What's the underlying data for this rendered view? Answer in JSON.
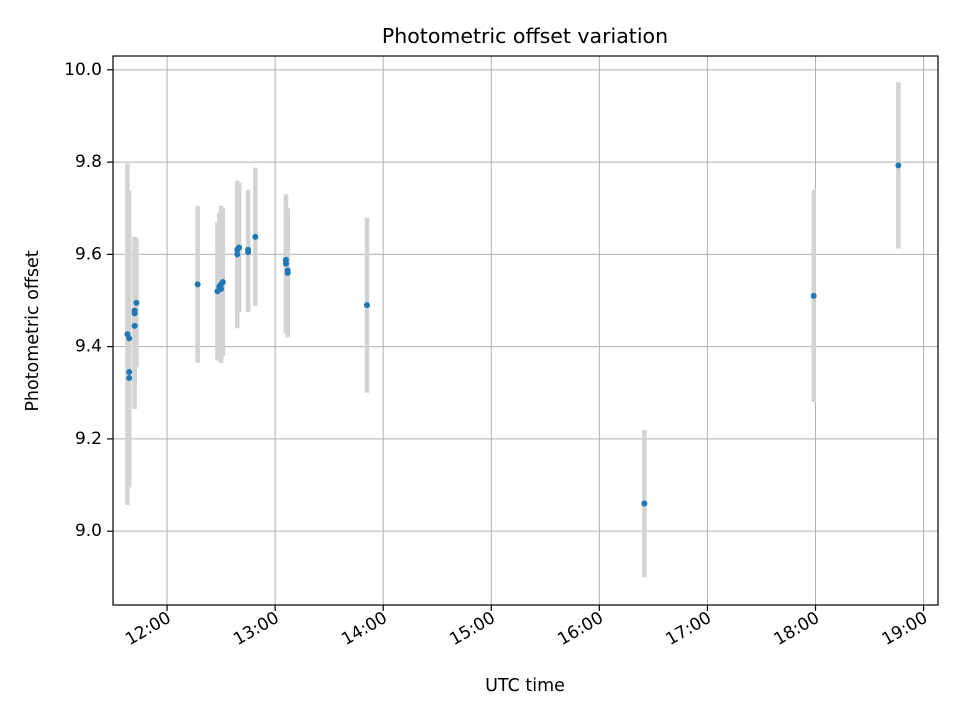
{
  "chart_data": {
    "type": "scatter",
    "title": "Photometric offset variation",
    "xlabel": "UTC time",
    "ylabel": "Photometric offset",
    "x_axis_type": "time",
    "xlim": [
      "11:30",
      "19:08"
    ],
    "ylim": [
      8.84,
      10.03
    ],
    "x_ticks": [
      "12:00",
      "13:00",
      "14:00",
      "15:00",
      "16:00",
      "17:00",
      "18:00",
      "19:00"
    ],
    "y_ticks": [
      9.0,
      9.2,
      9.4,
      9.6,
      9.8,
      10.0
    ],
    "y_tick_labels": [
      "9.0",
      "9.2",
      "9.4",
      "9.6",
      "9.8",
      "10.0"
    ],
    "grid": true,
    "colors": {
      "points": "#1f77b4",
      "error_bars": "#d3d3d3",
      "grid": "#b0b0b0"
    },
    "points": [
      {
        "x": "11:38",
        "y": 9.427,
        "yerr": 0.37
      },
      {
        "x": "11:39",
        "y": 9.418,
        "yerr": 0.32
      },
      {
        "x": "11:39",
        "y": 9.345,
        "yerr": 0.25
      },
      {
        "x": "11:39",
        "y": 9.332,
        "yerr": 0.22
      },
      {
        "x": "11:42",
        "y": 9.445,
        "yerr": 0.18
      },
      {
        "x": "11:42",
        "y": 9.472,
        "yerr": 0.15
      },
      {
        "x": "11:42",
        "y": 9.478,
        "yerr": 0.16
      },
      {
        "x": "11:43",
        "y": 9.495,
        "yerr": 0.14
      },
      {
        "x": "12:17",
        "y": 9.535,
        "yerr": 0.17
      },
      {
        "x": "12:28",
        "y": 9.52,
        "yerr": 0.15
      },
      {
        "x": "12:29",
        "y": 9.53,
        "yerr": 0.16
      },
      {
        "x": "12:30",
        "y": 9.535,
        "yerr": 0.17
      },
      {
        "x": "12:30",
        "y": 9.525,
        "yerr": 0.16
      },
      {
        "x": "12:31",
        "y": 9.54,
        "yerr": 0.16
      },
      {
        "x": "12:39",
        "y": 9.6,
        "yerr": 0.16
      },
      {
        "x": "12:39",
        "y": 9.61,
        "yerr": 0.14
      },
      {
        "x": "12:40",
        "y": 9.615,
        "yerr": 0.14
      },
      {
        "x": "12:45",
        "y": 9.61,
        "yerr": 0.13
      },
      {
        "x": "12:45",
        "y": 9.605,
        "yerr": 0.13
      },
      {
        "x": "12:49",
        "y": 9.638,
        "yerr": 0.15
      },
      {
        "x": "13:06",
        "y": 9.58,
        "yerr": 0.15
      },
      {
        "x": "13:06",
        "y": 9.588,
        "yerr": 0.14
      },
      {
        "x": "13:07",
        "y": 9.565,
        "yerr": 0.13
      },
      {
        "x": "13:07",
        "y": 9.56,
        "yerr": 0.14
      },
      {
        "x": "13:51",
        "y": 9.49,
        "yerr": 0.19
      },
      {
        "x": "16:25",
        "y": 9.06,
        "yerr": 0.16
      },
      {
        "x": "17:59",
        "y": 9.51,
        "yerr": 0.23
      },
      {
        "x": "18:46",
        "y": 9.793,
        "yerr": 0.18
      }
    ]
  }
}
